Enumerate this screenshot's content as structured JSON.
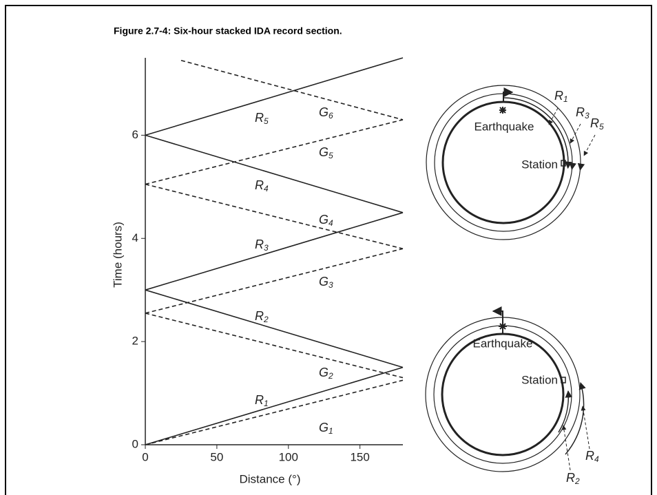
{
  "figure_caption": "Figure 2.7-4: Six-hour stacked IDA record section.",
  "chart_data": {
    "type": "line",
    "xlabel": "Distance (°)",
    "ylabel": "Time (hours)",
    "xlim": [
      0,
      180
    ],
    "ylim": [
      0,
      7.5
    ],
    "xticks": [
      0,
      50,
      100,
      150
    ],
    "yticks": [
      0,
      2,
      4,
      6
    ],
    "series": [
      {
        "name": "R",
        "subscript": "1",
        "style": "solid",
        "color": "#222",
        "x": [
          0,
          180
        ],
        "values": [
          0,
          1.5
        ]
      },
      {
        "name": "G",
        "subscript": "1",
        "style": "dashed",
        "color": "#222",
        "x": [
          0,
          180
        ],
        "values": [
          0,
          1.25
        ]
      },
      {
        "name": "G",
        "subscript": "2",
        "style": "dashed",
        "color": "#222",
        "x": [
          0,
          180
        ],
        "values": [
          2.55,
          1.3
        ]
      },
      {
        "name": "R",
        "subscript": "2",
        "style": "solid",
        "color": "#222",
        "x": [
          0,
          180
        ],
        "values": [
          3,
          1.5
        ]
      },
      {
        "name": "G",
        "subscript": "3",
        "style": "dashed",
        "color": "#222",
        "x": [
          0,
          180
        ],
        "values": [
          2.55,
          3.8
        ]
      },
      {
        "name": "R",
        "subscript": "3",
        "style": "solid",
        "color": "#222",
        "x": [
          0,
          180
        ],
        "values": [
          3,
          4.5
        ]
      },
      {
        "name": "G",
        "subscript": "4",
        "style": "dashed",
        "color": "#222",
        "x": [
          0,
          180
        ],
        "values": [
          5.05,
          3.8
        ]
      },
      {
        "name": "R",
        "subscript": "4",
        "style": "solid",
        "color": "#222",
        "x": [
          0,
          180
        ],
        "values": [
          6,
          4.5
        ]
      },
      {
        "name": "G",
        "subscript": "5",
        "style": "dashed",
        "color": "#222",
        "x": [
          0,
          180
        ],
        "values": [
          5.05,
          6.3
        ]
      },
      {
        "name": "R",
        "subscript": "5",
        "style": "solid",
        "color": "#222",
        "x": [
          0,
          180
        ],
        "values": [
          6,
          7.5
        ]
      },
      {
        "name": "G",
        "subscript": "6",
        "style": "dashed",
        "color": "#222",
        "x": [
          25,
          180
        ],
        "values": [
          7.45,
          6.3
        ]
      }
    ]
  },
  "diagrams": [
    {
      "earthquake": "Earthquake",
      "station": "Station",
      "arrows": [
        {
          "name": "R",
          "subscript": "1"
        },
        {
          "name": "R",
          "subscript": "3"
        },
        {
          "name": "R",
          "subscript": "5"
        }
      ]
    },
    {
      "earthquake": "Earthquake",
      "station": "Station",
      "arrows": [
        {
          "name": "R",
          "subscript": "4"
        },
        {
          "name": "R",
          "subscript": "2"
        }
      ]
    }
  ]
}
